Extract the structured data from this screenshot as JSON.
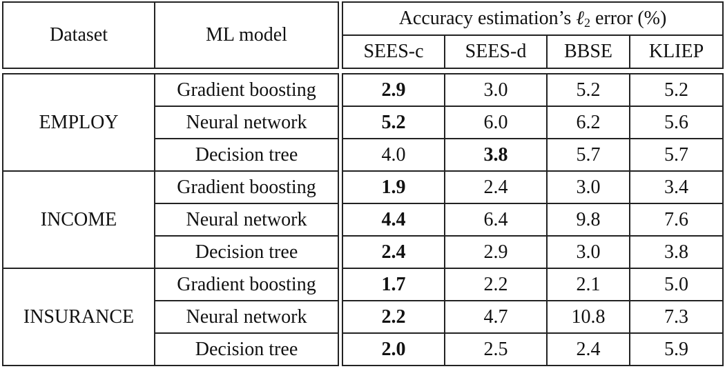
{
  "header": {
    "dataset_label": "Dataset",
    "model_label": "ML model",
    "group_label_prefix": "Accuracy estimation’s ",
    "group_label_symbol": "ℓ",
    "group_label_subscript": "2",
    "group_label_suffix": " error (%)",
    "methods": [
      "SEES-c",
      "SEES-d",
      "BBSE",
      "KLIEP"
    ]
  },
  "groups": [
    {
      "dataset": "EMPLOY",
      "rows": [
        {
          "model": "Gradient boosting",
          "values": [
            "2.9",
            "3.0",
            "5.2",
            "5.2"
          ],
          "bold_index": 0
        },
        {
          "model": "Neural network",
          "values": [
            "5.2",
            "6.0",
            "6.2",
            "5.6"
          ],
          "bold_index": 0
        },
        {
          "model": "Decision tree",
          "values": [
            "4.0",
            "3.8",
            "5.7",
            "5.7"
          ],
          "bold_index": 1
        }
      ]
    },
    {
      "dataset": "INCOME",
      "rows": [
        {
          "model": "Gradient boosting",
          "values": [
            "1.9",
            "2.4",
            "3.0",
            "3.4"
          ],
          "bold_index": 0
        },
        {
          "model": "Neural network",
          "values": [
            "4.4",
            "6.4",
            "9.8",
            "7.6"
          ],
          "bold_index": 0
        },
        {
          "model": "Decision tree",
          "values": [
            "2.4",
            "2.9",
            "3.0",
            "3.8"
          ],
          "bold_index": 0
        }
      ]
    },
    {
      "dataset": "INSURANCE",
      "rows": [
        {
          "model": "Gradient boosting",
          "values": [
            "1.7",
            "2.2",
            "2.1",
            "5.0"
          ],
          "bold_index": 0
        },
        {
          "model": "Neural network",
          "values": [
            "2.2",
            "4.7",
            "10.8",
            "7.3"
          ],
          "bold_index": 0
        },
        {
          "model": "Decision tree",
          "values": [
            "2.0",
            "2.5",
            "2.4",
            "5.9"
          ],
          "bold_index": 0
        }
      ]
    }
  ],
  "chart_data": {
    "type": "table",
    "title": "Accuracy estimation’s ℓ2 error (%)",
    "columns": [
      "Dataset",
      "ML model",
      "SEES-c",
      "SEES-d",
      "BBSE",
      "KLIEP"
    ],
    "rows": [
      [
        "EMPLOY",
        "Gradient boosting",
        2.9,
        3.0,
        5.2,
        5.2
      ],
      [
        "EMPLOY",
        "Neural network",
        5.2,
        6.0,
        6.2,
        5.6
      ],
      [
        "EMPLOY",
        "Decision tree",
        4.0,
        3.8,
        5.7,
        5.7
      ],
      [
        "INCOME",
        "Gradient boosting",
        1.9,
        2.4,
        3.0,
        3.4
      ],
      [
        "INCOME",
        "Neural network",
        4.4,
        6.4,
        9.8,
        7.6
      ],
      [
        "INCOME",
        "Decision tree",
        2.4,
        2.9,
        3.0,
        3.8
      ],
      [
        "INSURANCE",
        "Gradient boosting",
        1.7,
        2.2,
        2.1,
        5.0
      ],
      [
        "INSURANCE",
        "Neural network",
        2.2,
        4.7,
        10.8,
        7.3
      ],
      [
        "INSURANCE",
        "Decision tree",
        2.0,
        2.5,
        2.4,
        5.9
      ]
    ],
    "bold_cells": [
      [
        0,
        "SEES-c"
      ],
      [
        1,
        "SEES-c"
      ],
      [
        2,
        "SEES-d"
      ],
      [
        3,
        "SEES-c"
      ],
      [
        4,
        "SEES-c"
      ],
      [
        5,
        "SEES-c"
      ],
      [
        6,
        "SEES-c"
      ],
      [
        7,
        "SEES-c"
      ],
      [
        8,
        "SEES-c"
      ]
    ]
  }
}
